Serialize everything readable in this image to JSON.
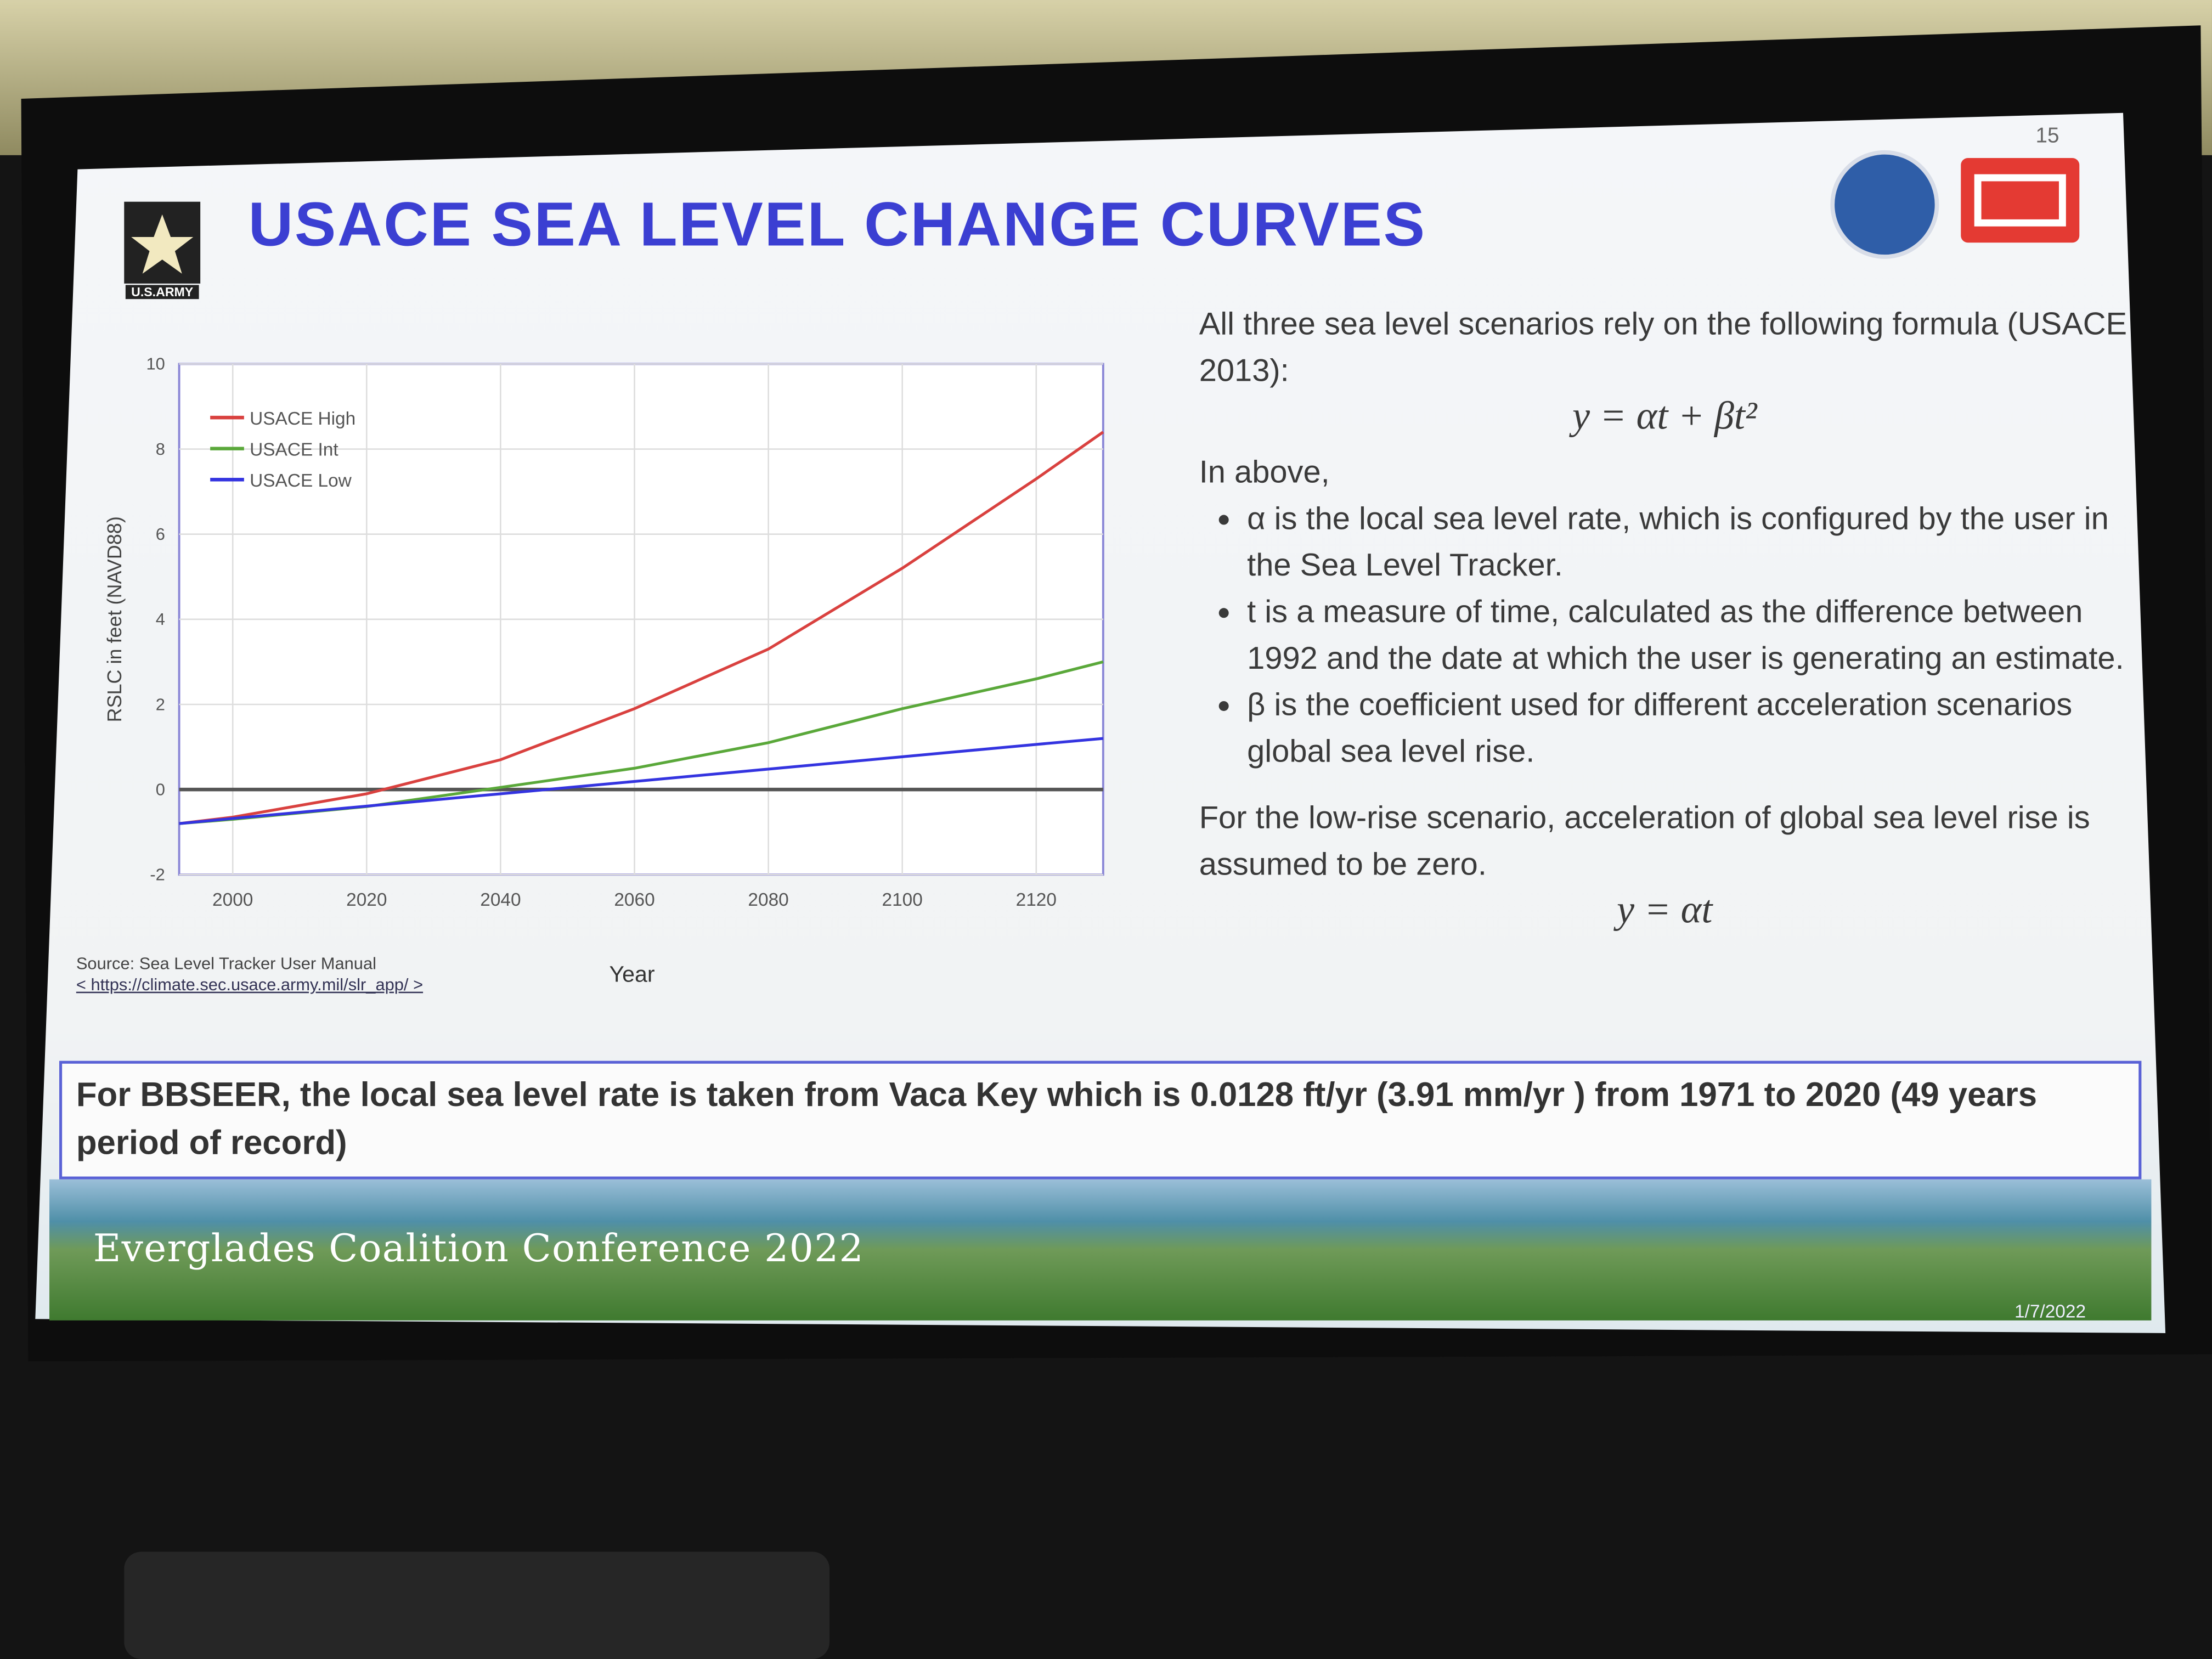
{
  "slide": {
    "page_number": "15",
    "logo_label": "U.S.ARMY",
    "title": "USACE SEA LEVEL CHANGE CURVES",
    "intro": "All three sea level scenarios rely on the following formula (USACE 2013):",
    "formula": "y = αt + βt²",
    "above_intro": "In above,",
    "bullets": [
      "α is the local sea level rate, which is configured by the user in the Sea Level Tracker.",
      "t is a measure of time, calculated as the difference between 1992 and the date at which the user is generating an estimate.",
      "β is the coefficient used for different acceleration scenarios global sea level rise."
    ],
    "low_rise_note": "For the low-rise scenario, acceleration of global sea level rise is assumed to be zero.",
    "low_rise_formula": "y = αt",
    "source": "Source: Sea Level Tracker User Manual",
    "source_url": "< https://climate.sec.usace.army.mil/slr_app/ >",
    "highlight": "For BBSEER, the local sea level rate is taken from Vaca Key which is 0.0128 ft/yr (3.91 mm/yr ) from 1971 to 2020 (49 years period of record)",
    "footer": "Everglades Coalition Conference 2022",
    "date": "1/7/2022"
  },
  "chart_data": {
    "type": "line",
    "x_label": "Year",
    "y_label": "RSLC in feet (NAVD88)",
    "x": [
      1992,
      2000,
      2020,
      2040,
      2060,
      2080,
      2100,
      2120,
      2130
    ],
    "series": [
      {
        "name": "USACE High",
        "color": "#d9413f",
        "values": [
          -0.8,
          -0.65,
          -0.1,
          0.7,
          1.9,
          3.3,
          5.2,
          7.3,
          8.4
        ]
      },
      {
        "name": "USACE Int",
        "color": "#5aa83a",
        "values": [
          -0.8,
          -0.7,
          -0.4,
          0.05,
          0.5,
          1.1,
          1.9,
          2.6,
          3.0
        ]
      },
      {
        "name": "USACE Low",
        "color": "#3434e0",
        "values": [
          -0.8,
          -0.68,
          -0.39,
          -0.1,
          0.19,
          0.48,
          0.77,
          1.06,
          1.2
        ]
      }
    ],
    "xlim": [
      1992,
      2130
    ],
    "ylim": [
      -2,
      10
    ],
    "xticks": [
      2000,
      2020,
      2040,
      2060,
      2080,
      2100,
      2120
    ],
    "yticks": [
      -2,
      0,
      2,
      4,
      6,
      8,
      10
    ],
    "grid": true,
    "legend": "upper-left"
  }
}
